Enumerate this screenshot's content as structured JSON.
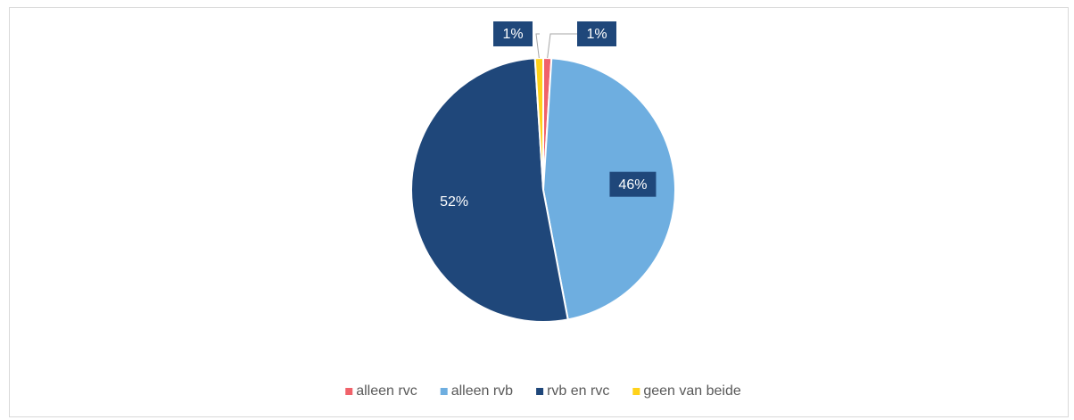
{
  "chart_data": {
    "type": "pie",
    "categories": [
      "alleen rvc",
      "alleen rvb",
      "rvb en rvc",
      "geen van beide"
    ],
    "values": [
      1,
      46,
      52,
      1
    ],
    "value_labels": [
      "1%",
      "46%",
      "52%",
      "1%"
    ],
    "colors": [
      "#f0626a",
      "#6eaee0",
      "#1f477a",
      "#ffd21a"
    ],
    "legend": "bottom"
  }
}
